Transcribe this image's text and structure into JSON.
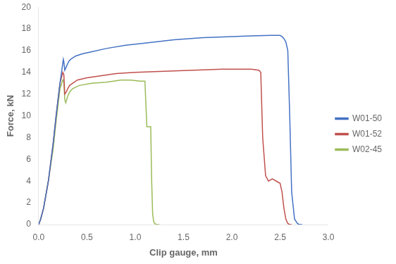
{
  "chart_data": {
    "type": "line",
    "title": "",
    "xlabel": "Clip gauge, mm",
    "ylabel": "Force, kN",
    "xlim": [
      0.0,
      3.0
    ],
    "ylim": [
      0,
      20
    ],
    "xticks": [
      {
        "value": 0,
        "label": "0.0"
      },
      0.5,
      {
        "value": 1,
        "label": "1.0"
      },
      1.5,
      {
        "value": 2,
        "label": "2.0"
      },
      2.5,
      {
        "value": 3,
        "label": "3.0"
      }
    ],
    "yticks": [
      0,
      2,
      4,
      6,
      8,
      10,
      12,
      14,
      16,
      18,
      20
    ],
    "grid": false,
    "legend": "right",
    "series": [
      {
        "name": "W01-50",
        "color": "#4472C4",
        "x": [
          0.0,
          0.02,
          0.05,
          0.1,
          0.15,
          0.18,
          0.22,
          0.255,
          0.26,
          0.27,
          0.285,
          0.3,
          0.31,
          0.33,
          0.38,
          0.45,
          0.55,
          0.7,
          0.9,
          1.1,
          1.4,
          1.7,
          2.0,
          2.2,
          2.4,
          2.5,
          2.52,
          2.54,
          2.56,
          2.58,
          2.6,
          2.62,
          2.65,
          2.68,
          2.7,
          2.72,
          2.73,
          2.73,
          2.72,
          2.7
        ],
        "values": [
          0.0,
          0.5,
          1.5,
          4.0,
          7.5,
          10.0,
          13.0,
          15.2,
          15.0,
          14.2,
          14.5,
          14.8,
          15.0,
          15.2,
          15.5,
          15.7,
          15.9,
          16.2,
          16.5,
          16.7,
          17.0,
          17.2,
          17.3,
          17.35,
          17.4,
          17.4,
          17.3,
          17.1,
          16.8,
          16.0,
          10.0,
          3.0,
          0.5,
          0.1,
          0.0,
          0.0,
          0.0,
          0.0,
          0.0,
          0.0
        ]
      },
      {
        "name": "W01-52",
        "color": "#C0504D",
        "x": [
          0.0,
          0.02,
          0.05,
          0.1,
          0.15,
          0.18,
          0.22,
          0.25,
          0.26,
          0.27,
          0.285,
          0.3,
          0.32,
          0.35,
          0.4,
          0.5,
          0.65,
          0.8,
          1.0,
          1.3,
          1.6,
          1.9,
          2.1,
          2.2,
          2.28,
          2.3,
          2.32,
          2.35,
          2.38,
          2.42,
          2.46,
          2.5,
          2.52,
          2.54,
          2.56,
          2.58,
          2.6,
          2.62,
          2.62
        ],
        "values": [
          0.0,
          0.5,
          1.5,
          4.0,
          7.5,
          10.0,
          13.0,
          14.0,
          13.8,
          12.0,
          12.2,
          12.5,
          12.8,
          13.0,
          13.3,
          13.5,
          13.7,
          13.9,
          14.0,
          14.1,
          14.2,
          14.3,
          14.3,
          14.3,
          14.2,
          14.0,
          8.0,
          4.5,
          4.0,
          4.2,
          4.0,
          3.8,
          3.0,
          1.5,
          0.5,
          0.1,
          0.0,
          0.0,
          0.0
        ]
      },
      {
        "name": "W02-45",
        "color": "#9BBB59",
        "x": [
          0.0,
          0.02,
          0.05,
          0.1,
          0.15,
          0.18,
          0.22,
          0.25,
          0.26,
          0.27,
          0.28,
          0.3,
          0.32,
          0.35,
          0.42,
          0.55,
          0.7,
          0.85,
          0.95,
          1.05,
          1.1,
          1.12,
          1.13,
          1.14,
          1.15,
          1.16,
          1.17,
          1.18,
          1.19,
          1.2,
          1.22,
          1.24,
          1.25
        ],
        "values": [
          0.0,
          0.5,
          1.5,
          4.0,
          7.0,
          9.5,
          12.5,
          13.3,
          13.1,
          11.5,
          11.2,
          11.8,
          12.2,
          12.5,
          12.8,
          13.0,
          13.1,
          13.3,
          13.3,
          13.2,
          13.2,
          9.0,
          9.0,
          9.0,
          9.0,
          9.0,
          4.0,
          1.0,
          0.3,
          0.1,
          0.0,
          0.0,
          0.0
        ]
      }
    ]
  }
}
